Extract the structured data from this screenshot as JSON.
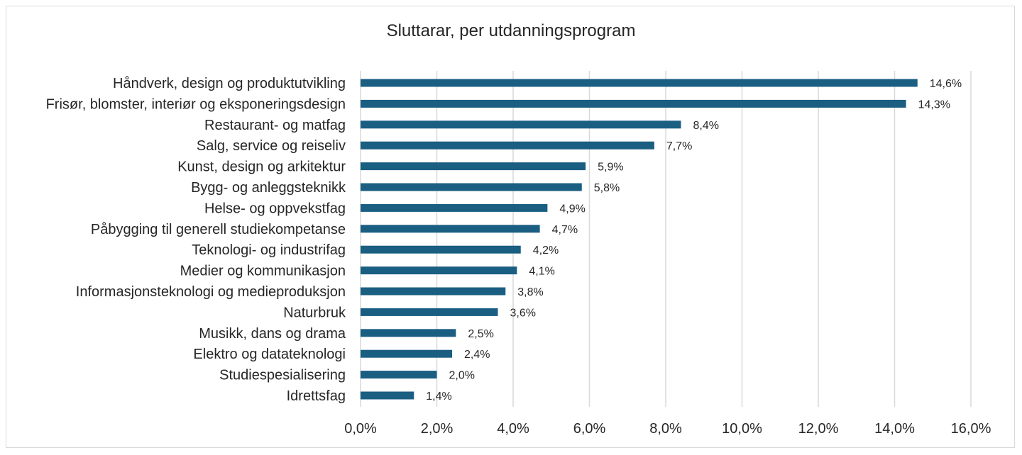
{
  "chart_data": {
    "type": "bar",
    "orientation": "horizontal",
    "title": "Sluttarar, per utdanningsprogram",
    "categories": [
      "Håndverk, design og produktutvikling",
      "Frisør, blomster, interiør og eksponeringsdesign",
      "Restaurant- og matfag",
      "Salg, service og reiseliv",
      "Kunst, design og arkitektur",
      "Bygg- og anleggsteknikk",
      "Helse- og oppvekstfag",
      "Påbygging til generell studiekompetanse",
      "Teknologi- og industrifag",
      "Medier og kommunikasjon",
      "Informasjonsteknologi og medieproduksjon",
      "Naturbruk",
      "Musikk, dans og drama",
      "Elektro og datateknologi",
      "Studiespesialisering",
      "Idrettsfag"
    ],
    "values": [
      14.6,
      14.3,
      8.4,
      7.7,
      5.9,
      5.8,
      4.9,
      4.7,
      4.2,
      4.1,
      3.8,
      3.6,
      2.5,
      2.4,
      2.0,
      1.4
    ],
    "value_labels": [
      "14,6%",
      "14,3%",
      "8,4%",
      "7,7%",
      "5,9%",
      "5,8%",
      "4,9%",
      "4,7%",
      "4,2%",
      "4,1%",
      "3,8%",
      "3,6%",
      "2,5%",
      "2,4%",
      "2,0%",
      "1,4%"
    ],
    "xlim": [
      0,
      16
    ],
    "xticks": [
      0,
      2,
      4,
      6,
      8,
      10,
      12,
      14,
      16
    ],
    "xtick_labels": [
      "0,0%",
      "2,0%",
      "4,0%",
      "6,0%",
      "8,0%",
      "10,0%",
      "12,0%",
      "14,0%",
      "16,0%"
    ],
    "grid": "vertical",
    "legend": "none",
    "bar_color": "#1a5e82",
    "grid_color": "#d9d9d9"
  }
}
